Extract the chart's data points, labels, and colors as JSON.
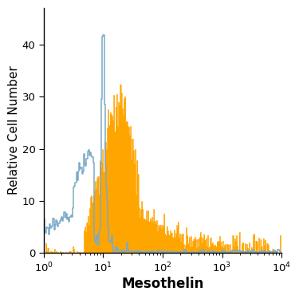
{
  "title": "",
  "xlabel": "Mesothelin",
  "ylabel": "Relative Cell Number",
  "xlim_log": [
    0,
    4
  ],
  "ylim": [
    0,
    47
  ],
  "yticks": [
    0,
    10,
    20,
    30,
    40
  ],
  "xlabel_fontsize": 12,
  "ylabel_fontsize": 11,
  "filled_color": "#FFA500",
  "open_color": "#7AAAC8",
  "background_color": "#ffffff",
  "n_bins": 256
}
